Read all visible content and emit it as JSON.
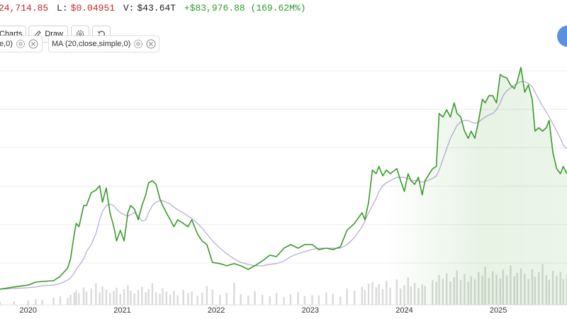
{
  "header": {
    "last": "24,714.85",
    "low_label": "L:",
    "low": "$0.04951",
    "volume_label": "V:",
    "volume": "$43.64T",
    "change": "+$83,976.88 (169.62M%)"
  },
  "toolbar": {
    "charts": "Charts",
    "draw": "Draw"
  },
  "indicators": [
    "e,0)"
  ],
  "chart_data": {
    "type": "line",
    "x": [
      2019.7,
      2019.85,
      2020.0,
      2020.08,
      2020.15,
      2020.27,
      2020.34,
      2020.42,
      2020.45,
      2020.49,
      2020.51,
      2020.54,
      2020.59,
      2020.62,
      2020.67,
      2020.72,
      2020.76,
      2020.79,
      2020.83,
      2020.87,
      2020.91,
      2020.94,
      2020.98,
      2021.02,
      2021.06,
      2021.09,
      2021.13,
      2021.17,
      2021.21,
      2021.25,
      2021.28,
      2021.32,
      2021.36,
      2021.4,
      2021.43,
      2021.47,
      2021.51,
      2021.55,
      2021.59,
      2021.65,
      2021.7,
      2021.74,
      2021.8,
      2021.85,
      2021.9,
      2021.96,
      2022.04,
      2022.11,
      2022.19,
      2022.26,
      2022.34,
      2022.41,
      2022.49,
      2022.57,
      2022.64,
      2022.72,
      2022.79,
      2022.87,
      2022.94,
      2023.02,
      2023.09,
      2023.17,
      2023.24,
      2023.32,
      2023.39,
      2023.47,
      2023.55,
      2023.58,
      2023.62,
      2023.66,
      2023.7,
      2023.73,
      2023.77,
      2023.81,
      2023.85,
      2023.92,
      2023.96,
      2024.0,
      2024.04,
      2024.07,
      2024.11,
      2024.15,
      2024.19,
      2024.22,
      2024.3,
      2024.34,
      2024.37,
      2024.41,
      2024.45,
      2024.49,
      2024.53,
      2024.56,
      2024.6,
      2024.64,
      2024.68,
      2024.71,
      2024.75,
      2024.79,
      2024.83,
      2024.86,
      2024.9,
      2024.94,
      2024.98,
      2025.02,
      2025.05,
      2025.09,
      2025.13,
      2025.17,
      2025.2,
      2025.24,
      2025.28,
      2025.32,
      2025.36,
      2025.39,
      2025.43,
      2025.47,
      2025.51,
      2025.54,
      2025.58,
      2025.62,
      2025.66,
      2025.69,
      2025.73
    ],
    "xlim": [
      2019.7,
      2025.73
    ],
    "xticks": [
      2020,
      2021,
      2022,
      2023,
      2024,
      2025
    ],
    "ylim": [
      0,
      100
    ],
    "y2lim": [
      0,
      100
    ],
    "grid": true,
    "series": [
      {
        "color": "#3a9a2a",
        "area": true,
        "values": [
          6.5,
          7.4,
          8.2,
          9.4,
          9.7,
          10.0,
          11.8,
          15.3,
          19.1,
          29.4,
          33.8,
          32.4,
          41.2,
          41.2,
          46.5,
          47.6,
          49.4,
          42.6,
          48.5,
          38.2,
          32.4,
          26.5,
          30.9,
          26.5,
          38.2,
          41.2,
          39.7,
          35.3,
          41.2,
          45.6,
          50.6,
          51.5,
          50.0,
          44.1,
          41.2,
          38.2,
          35.3,
          32.4,
          35.3,
          33.8,
          32.4,
          35.3,
          29.4,
          26.5,
          25.0,
          17.6,
          17.1,
          16.2,
          17.1,
          16.2,
          14.7,
          16.2,
          18.2,
          20.6,
          20.0,
          23.5,
          25.0,
          23.5,
          25.0,
          25.0,
          22.9,
          23.5,
          22.9,
          24.1,
          30.9,
          33.8,
          38.2,
          35.3,
          42.6,
          55.9,
          54.4,
          57.4,
          53.5,
          55.9,
          54.4,
          56.5,
          51.5,
          47.1,
          54.4,
          51.5,
          50.0,
          52.9,
          45.6,
          51.5,
          56.5,
          57.4,
          79.4,
          77.9,
          80.9,
          77.9,
          83.8,
          79.4,
          77.9,
          72.1,
          69.1,
          72.1,
          69.1,
          76.5,
          85.3,
          83.8,
          86.8,
          86.8,
          83.8,
          95.6,
          94.7,
          94.1,
          91.2,
          89.7,
          92.6,
          98.5,
          88.2,
          91.2,
          85.3,
          72.1,
          73.5,
          72.1,
          73.5,
          76.5,
          63.2,
          56.5,
          54.4,
          57.4,
          54.4
        ]
      },
      {
        "name": "MA (20,close,simple,0)",
        "color": "#b3a6d8",
        "values": [
          6.5,
          6.8,
          7.1,
          7.4,
          7.9,
          8.2,
          8.8,
          10.3,
          11.2,
          13.2,
          14.7,
          16.2,
          19.1,
          22.1,
          25.0,
          29.4,
          35.3,
          38.8,
          41.2,
          41.8,
          41.2,
          39.7,
          38.2,
          37.4,
          36.8,
          37.4,
          38.2,
          36.8,
          34.7,
          35.3,
          38.2,
          41.2,
          42.6,
          43.2,
          43.2,
          42.6,
          41.8,
          40.6,
          39.4,
          38.2,
          36.8,
          35.9,
          33.8,
          31.8,
          29.4,
          26.5,
          23.5,
          21.2,
          19.1,
          17.6,
          16.8,
          16.2,
          16.2,
          16.8,
          17.1,
          18.2,
          20.0,
          21.2,
          22.1,
          22.9,
          23.5,
          23.5,
          23.5,
          23.5,
          25.0,
          27.9,
          32.4,
          34.7,
          38.2,
          41.2,
          44.1,
          47.1,
          49.4,
          50.6,
          51.5,
          52.9,
          52.9,
          52.9,
          52.4,
          51.8,
          51.5,
          51.5,
          50.9,
          51.2,
          52.4,
          53.5,
          55.9,
          60.3,
          64.7,
          69.1,
          72.1,
          74.4,
          75.9,
          76.5,
          76.5,
          75.9,
          75.3,
          75.9,
          77.1,
          77.9,
          78.8,
          79.4,
          80.9,
          83.8,
          86.8,
          88.8,
          90.0,
          91.2,
          91.8,
          92.6,
          92.6,
          91.8,
          90.6,
          88.2,
          85.3,
          82.4,
          80.0,
          77.9,
          75.0,
          72.1,
          69.1,
          66.2,
          64.7
        ]
      },
      {
        "color": "#dadada",
        "axis": "y2",
        "type": "bar",
        "values": [
          1.2,
          1.5,
          1.8,
          2.4,
          2.1,
          3.0,
          3.5,
          2.8,
          4.1,
          5.2,
          6.0,
          4.8,
          7.2,
          5.5,
          6.8,
          8.9,
          5.1,
          7.6,
          6.3,
          4.9,
          5.8,
          7.1,
          4.4,
          6.5,
          8.2,
          5.9,
          4.7,
          6.1,
          7.4,
          5.3,
          6.6,
          9.0,
          5.2,
          4.6,
          6.9,
          5.5,
          4.3,
          5.8,
          3.9,
          6.2,
          4.8,
          5.6,
          3.7,
          5.1,
          7.8,
          6.4,
          4.2,
          5.0,
          9.2,
          4.5,
          3.8,
          5.7,
          4.1,
          3.5,
          4.9,
          3.2,
          4.4,
          5.3,
          3.6,
          4.0,
          3.9,
          5.1,
          4.6,
          3.4,
          6.8,
          5.9,
          7.5,
          6.2,
          8.8,
          9.4,
          7.3,
          8.6,
          6.5,
          9.9,
          7.1,
          10.5,
          6.8,
          8.2,
          11.3,
          7.6,
          9.1,
          6.9,
          8.4,
          7.8,
          10.2,
          9.6,
          12.4,
          10.8,
          13.1,
          9.7,
          11.5,
          14.2,
          10.3,
          12.8,
          9.5,
          11.9,
          10.6,
          13.6,
          12.1,
          15.8,
          11.2,
          13.9,
          12.5,
          10.9,
          14.6,
          12.2,
          16.4,
          11.8,
          13.3,
          15.1,
          12.9,
          10.7,
          14.8,
          11.6,
          13.5,
          16.9,
          12.3,
          10.4,
          14.1,
          11.9,
          13.7,
          10.8,
          12.6
        ]
      }
    ]
  }
}
